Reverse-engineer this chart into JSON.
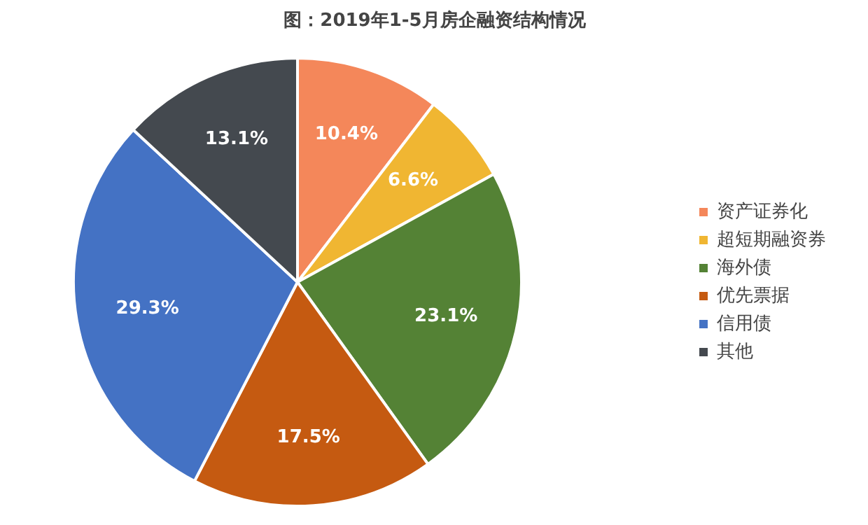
{
  "chart_data": {
    "type": "pie",
    "title": "图：2019年1-5月房企融资结构情况",
    "categories": [
      "资产证券化",
      "超短期融资券",
      "海外债",
      "优先票据",
      "信用债",
      "其他"
    ],
    "values": [
      10.4,
      6.6,
      23.1,
      17.5,
      29.3,
      13.1
    ],
    "colors": [
      "#f4875a",
      "#f0b632",
      "#548235",
      "#c55a11",
      "#4472c4",
      "#44494f"
    ],
    "value_labels": [
      "10.4%",
      "6.6%",
      "23.1%",
      "17.5%",
      "29.3%",
      "13.1%"
    ],
    "legend": "right"
  }
}
